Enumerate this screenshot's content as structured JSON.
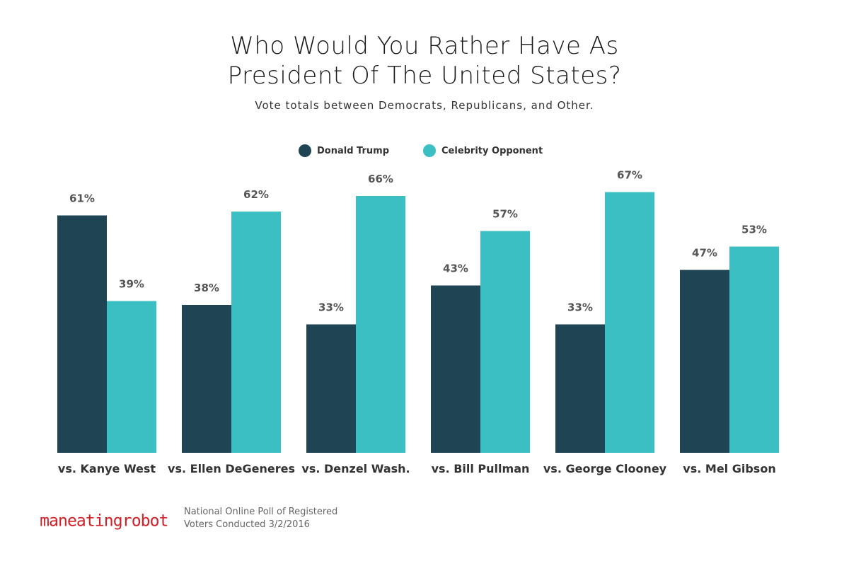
{
  "header": {
    "title_line1": "Who Would You Rather Have As",
    "title_line2": "President Of The United States?",
    "subtitle": "Vote totals between Democrats, Republicans, and Other."
  },
  "colors": {
    "trump": "#1f4555",
    "opponent": "#3bbfc3",
    "logo_text": "#d32027"
  },
  "chart_data": {
    "type": "bar",
    "categories": [
      "vs. Kanye West",
      "vs. Ellen DeGeneres",
      "vs. Denzel Wash.",
      "vs. Bill Pullman",
      "vs. George Clooney",
      "vs. Mel Gibson"
    ],
    "series": [
      {
        "name": "Donald Trump",
        "values": [
          61,
          38,
          33,
          43,
          33,
          47
        ]
      },
      {
        "name": "Celebrity Opponent",
        "values": [
          39,
          62,
          66,
          57,
          67,
          53
        ]
      }
    ],
    "value_suffix": "%",
    "ylim": [
      0,
      100
    ],
    "grid": false,
    "legend_position": "top-center"
  },
  "footer": {
    "logo_text": "maneatingrobot",
    "note_line1": "National Online Poll of Registered",
    "note_line2": "Voters Conducted 3/2/2016"
  }
}
